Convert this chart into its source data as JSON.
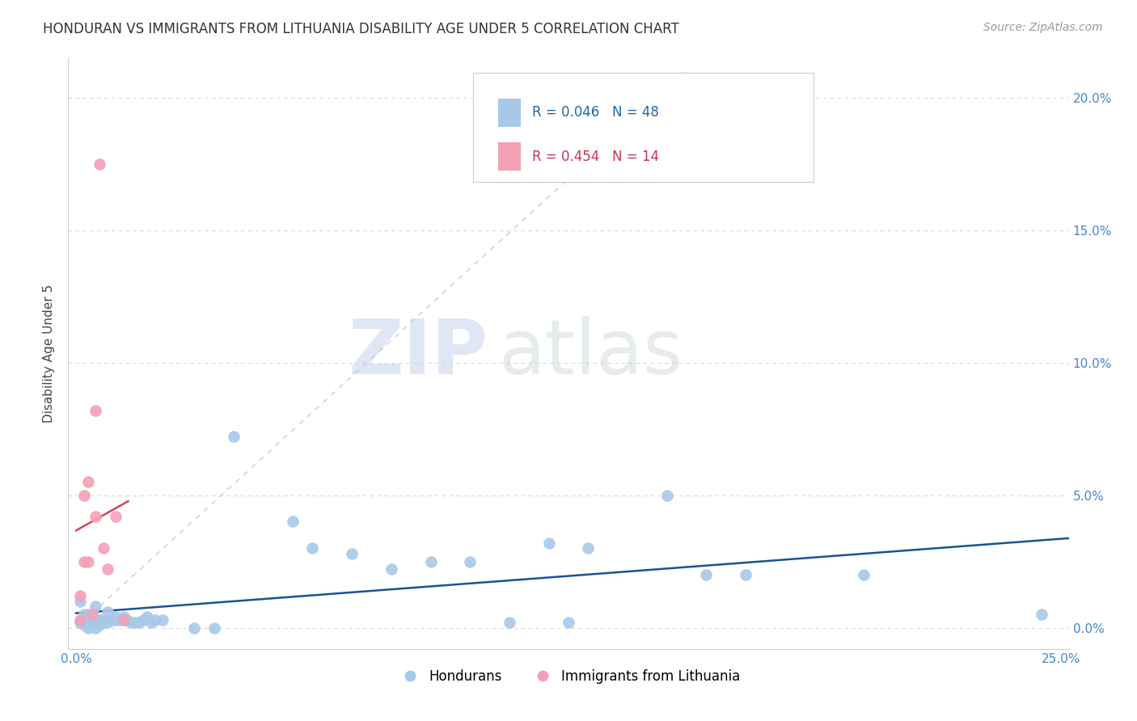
{
  "title": "HONDURAN VS IMMIGRANTS FROM LITHUANIA DISABILITY AGE UNDER 5 CORRELATION CHART",
  "source": "Source: ZipAtlas.com",
  "ylabel": "Disability Age Under 5",
  "xlim": [
    -0.002,
    0.252
  ],
  "ylim": [
    -0.008,
    0.215
  ],
  "honduran_x": [
    0.001,
    0.001,
    0.002,
    0.002,
    0.003,
    0.003,
    0.004,
    0.004,
    0.005,
    0.005,
    0.006,
    0.006,
    0.007,
    0.008,
    0.008,
    0.009,
    0.01,
    0.01,
    0.011,
    0.012,
    0.012,
    0.013,
    0.014,
    0.015,
    0.016,
    0.017,
    0.018,
    0.019,
    0.02,
    0.022,
    0.03,
    0.035,
    0.04,
    0.055,
    0.06,
    0.07,
    0.08,
    0.09,
    0.1,
    0.11,
    0.12,
    0.125,
    0.13,
    0.15,
    0.16,
    0.17,
    0.2,
    0.245
  ],
  "honduran_y": [
    0.01,
    0.002,
    0.005,
    0.001,
    0.0,
    0.005,
    0.002,
    0.001,
    0.008,
    0.0,
    0.003,
    0.001,
    0.003,
    0.006,
    0.002,
    0.003,
    0.003,
    0.004,
    0.003,
    0.004,
    0.003,
    0.003,
    0.002,
    0.002,
    0.002,
    0.003,
    0.004,
    0.002,
    0.003,
    0.003,
    0.0,
    0.0,
    0.072,
    0.04,
    0.03,
    0.028,
    0.022,
    0.025,
    0.025,
    0.002,
    0.032,
    0.002,
    0.03,
    0.05,
    0.02,
    0.02,
    0.02,
    0.005
  ],
  "lithuania_x": [
    0.001,
    0.001,
    0.002,
    0.002,
    0.003,
    0.003,
    0.004,
    0.005,
    0.005,
    0.006,
    0.007,
    0.008,
    0.01,
    0.012
  ],
  "lithuania_y": [
    0.003,
    0.012,
    0.025,
    0.05,
    0.025,
    0.055,
    0.005,
    0.042,
    0.082,
    0.175,
    0.03,
    0.022,
    0.042,
    0.003
  ],
  "blue_color": "#a8c8e8",
  "pink_color": "#f4a0b5",
  "blue_line_color": "#1a5296",
  "pink_line_color": "#d94060",
  "gray_dash_color": "#c8c8c8",
  "r_blue": "R = 0.046",
  "n_blue": "N = 48",
  "r_pink": "R = 0.454",
  "n_pink": "N = 14",
  "legend_blue": "Hondurans",
  "legend_pink": "Immigrants from Lithuania",
  "watermark_zip": "ZIP",
  "watermark_atlas": "atlas",
  "background_color": "#ffffff",
  "grid_color": "#e0e0e0"
}
